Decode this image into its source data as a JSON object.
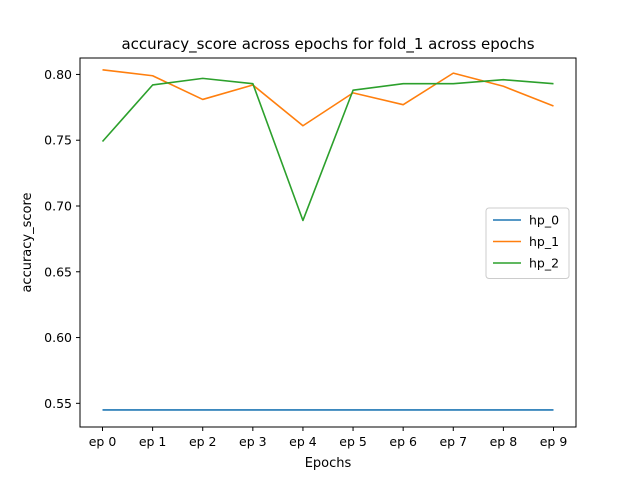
{
  "chart_data": {
    "type": "line",
    "title": "accuracy_score across epochs for fold_1 across epochs",
    "xlabel": "Epochs",
    "ylabel": "accuracy_score",
    "categories": [
      "ep 0",
      "ep 1",
      "ep 2",
      "ep 3",
      "ep 4",
      "ep 5",
      "ep 6",
      "ep 7",
      "ep 8",
      "ep 9"
    ],
    "ylim": [
      0.532,
      0.8125
    ],
    "yticks": [
      0.55,
      0.6,
      0.65,
      0.7,
      0.75,
      0.8
    ],
    "ytick_labels": [
      "0.55",
      "0.60",
      "0.65",
      "0.70",
      "0.75",
      "0.80"
    ],
    "grid": false,
    "legend_position": "center-right",
    "series": [
      {
        "name": "hp_0",
        "color": "#1f77b4",
        "values": [
          0.545,
          0.545,
          0.545,
          0.545,
          0.545,
          0.545,
          0.545,
          0.545,
          0.545,
          0.545
        ]
      },
      {
        "name": "hp_1",
        "color": "#ff7f0e",
        "values": [
          0.8035,
          0.799,
          0.781,
          0.792,
          0.761,
          0.786,
          0.777,
          0.801,
          0.791,
          0.776
        ]
      },
      {
        "name": "hp_2",
        "color": "#2ca02c",
        "values": [
          0.749,
          0.792,
          0.797,
          0.793,
          0.689,
          0.788,
          0.793,
          0.793,
          0.796,
          0.793
        ]
      }
    ]
  }
}
